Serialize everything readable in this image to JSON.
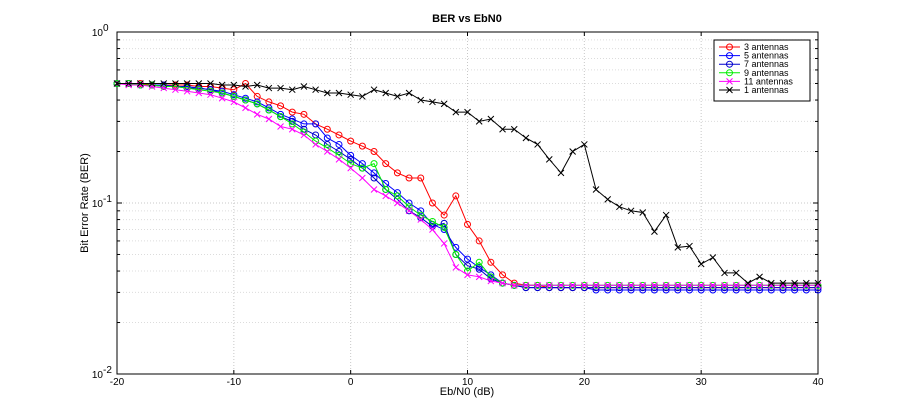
{
  "chart_data": {
    "type": "line",
    "title": "BER vs EbN0",
    "xlabel": "Eb/N0 (dB)",
    "ylabel": "Bit Error Rate (BER)",
    "xlim": [
      -20,
      40
    ],
    "ylim": [
      0.01,
      1
    ],
    "yscale": "log",
    "grid": true,
    "legend_position": "top-right",
    "xticks": [
      -20,
      -10,
      0,
      10,
      20,
      30,
      40
    ],
    "xtick_labels": [
      "-20",
      "-10",
      "0",
      "10",
      "20",
      "30",
      "40"
    ],
    "ytick_labels": [
      {
        "base": "10",
        "exp": "0",
        "value": 1
      },
      {
        "base": "10",
        "exp": "-1",
        "value": 0.1
      },
      {
        "base": "10",
        "exp": "-2",
        "value": 0.01
      }
    ],
    "x": [
      -20,
      -19,
      -18,
      -17,
      -16,
      -15,
      -14,
      -13,
      -12,
      -11,
      -10,
      -9,
      -8,
      -7,
      -6,
      -5,
      -4,
      -3,
      -2,
      -1,
      0,
      1,
      2,
      3,
      4,
      5,
      6,
      7,
      8,
      9,
      10,
      11,
      12,
      13,
      14,
      15,
      16,
      17,
      18,
      19,
      20,
      21,
      22,
      23,
      24,
      25,
      26,
      27,
      28,
      29,
      30,
      31,
      32,
      33,
      34,
      35,
      36,
      37,
      38,
      39,
      40
    ],
    "series": [
      {
        "name": "3 antennas",
        "color": "#ff0000",
        "marker": "circle",
        "values": [
          0.5,
          0.5,
          0.5,
          0.49,
          0.49,
          0.49,
          0.49,
          0.48,
          0.48,
          0.47,
          0.46,
          0.5,
          0.42,
          0.39,
          0.37,
          0.34,
          0.33,
          0.29,
          0.27,
          0.25,
          0.23,
          0.215,
          0.2,
          0.17,
          0.15,
          0.14,
          0.14,
          0.1,
          0.085,
          0.11,
          0.075,
          0.06,
          0.045,
          0.038,
          0.034,
          0.033,
          0.033,
          0.032,
          0.032,
          0.032,
          0.032,
          0.032,
          0.032,
          0.032,
          0.032,
          0.032,
          0.032,
          0.032,
          0.032,
          0.032,
          0.032,
          0.032,
          0.032,
          0.032,
          0.032,
          0.032,
          0.032,
          0.032,
          0.032,
          0.032,
          0.032
        ]
      },
      {
        "name": "5 antennas",
        "color": "#0000ff",
        "marker": "circle",
        "values": [
          0.5,
          0.5,
          0.49,
          0.49,
          0.49,
          0.48,
          0.48,
          0.47,
          0.46,
          0.45,
          0.43,
          0.41,
          0.39,
          0.36,
          0.33,
          0.31,
          0.29,
          0.29,
          0.24,
          0.22,
          0.19,
          0.17,
          0.15,
          0.13,
          0.115,
          0.1,
          0.09,
          0.075,
          0.07,
          0.055,
          0.047,
          0.042,
          0.038,
          0.034,
          0.033,
          0.032,
          0.032,
          0.032,
          0.032,
          0.032,
          0.032,
          0.031,
          0.031,
          0.031,
          0.031,
          0.031,
          0.031,
          0.031,
          0.031,
          0.031,
          0.031,
          0.031,
          0.031,
          0.031,
          0.031,
          0.031,
          0.031,
          0.031,
          0.031,
          0.031,
          0.031
        ]
      },
      {
        "name": "7 antennas",
        "color": "#0000cc",
        "marker": "circle",
        "values": [
          0.5,
          0.5,
          0.49,
          0.49,
          0.48,
          0.48,
          0.47,
          0.47,
          0.46,
          0.44,
          0.42,
          0.4,
          0.38,
          0.35,
          0.32,
          0.3,
          0.27,
          0.25,
          0.22,
          0.2,
          0.18,
          0.16,
          0.14,
          0.12,
          0.105,
          0.09,
          0.082,
          0.073,
          0.076,
          0.05,
          0.043,
          0.041,
          0.036,
          0.034,
          0.033,
          0.032,
          0.032,
          0.032,
          0.032,
          0.032,
          0.032,
          0.032,
          0.032,
          0.032,
          0.032,
          0.032,
          0.032,
          0.032,
          0.032,
          0.032,
          0.032,
          0.032,
          0.032,
          0.032,
          0.032,
          0.032,
          0.032,
          0.032,
          0.032,
          0.032,
          0.032
        ]
      },
      {
        "name": "9 antennas",
        "color": "#00ee00",
        "marker": "circle",
        "values": [
          0.5,
          0.5,
          0.49,
          0.49,
          0.48,
          0.48,
          0.47,
          0.46,
          0.45,
          0.44,
          0.42,
          0.4,
          0.38,
          0.35,
          0.32,
          0.29,
          0.26,
          0.23,
          0.21,
          0.19,
          0.17,
          0.16,
          0.17,
          0.12,
          0.11,
          0.095,
          0.085,
          0.078,
          0.072,
          0.05,
          0.04,
          0.045,
          0.037,
          0.034,
          0.033,
          0.033,
          0.033,
          0.033,
          0.033,
          0.033,
          0.033,
          0.033,
          0.033,
          0.033,
          0.033,
          0.033,
          0.033,
          0.033,
          0.033,
          0.033,
          0.033,
          0.033,
          0.033,
          0.033,
          0.033,
          0.033,
          0.033,
          0.033,
          0.033,
          0.033,
          0.033
        ]
      },
      {
        "name": "11 antennas",
        "color": "#ff00ff",
        "marker": "x",
        "values": [
          0.5,
          0.49,
          0.49,
          0.48,
          0.47,
          0.46,
          0.45,
          0.44,
          0.43,
          0.41,
          0.39,
          0.36,
          0.33,
          0.31,
          0.28,
          0.27,
          0.25,
          0.22,
          0.2,
          0.18,
          0.16,
          0.14,
          0.12,
          0.11,
          0.1,
          0.09,
          0.08,
          0.07,
          0.058,
          0.042,
          0.038,
          0.037,
          0.035,
          0.034,
          0.033,
          0.033,
          0.033,
          0.033,
          0.033,
          0.033,
          0.033,
          0.033,
          0.033,
          0.033,
          0.033,
          0.033,
          0.033,
          0.033,
          0.033,
          0.033,
          0.033,
          0.033,
          0.033,
          0.033,
          0.033,
          0.033,
          0.033,
          0.033,
          0.033,
          0.033,
          0.033
        ]
      },
      {
        "name": "1 antennas",
        "color": "#000000",
        "marker": "x",
        "values": [
          0.5,
          0.5,
          0.5,
          0.5,
          0.5,
          0.5,
          0.5,
          0.5,
          0.5,
          0.49,
          0.49,
          0.48,
          0.49,
          0.47,
          0.47,
          0.46,
          0.48,
          0.46,
          0.44,
          0.44,
          0.43,
          0.42,
          0.46,
          0.44,
          0.42,
          0.44,
          0.4,
          0.39,
          0.38,
          0.34,
          0.34,
          0.3,
          0.31,
          0.27,
          0.27,
          0.24,
          0.22,
          0.18,
          0.15,
          0.2,
          0.22,
          0.12,
          0.105,
          0.095,
          0.09,
          0.088,
          0.068,
          0.085,
          0.055,
          0.056,
          0.044,
          0.048,
          0.039,
          0.039,
          0.034,
          0.037,
          0.034,
          0.034,
          0.034,
          0.034,
          0.034
        ]
      }
    ]
  }
}
